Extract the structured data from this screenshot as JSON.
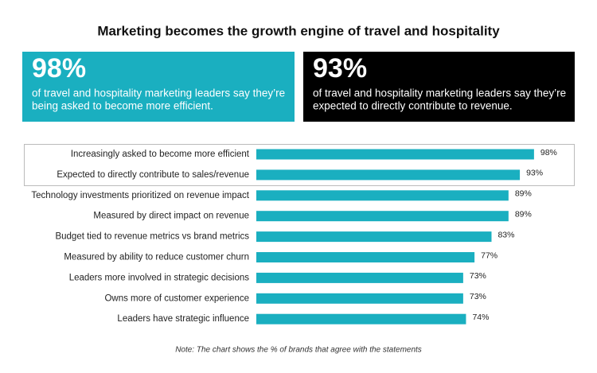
{
  "highlights": [
    {
      "stat": "98%",
      "lines": [
        "of travel and hospitality marketing leaders say they’re",
        "being asked to become more efficient."
      ]
    },
    {
      "stat": "93%",
      "lines": [
        "of travel and hospitality marketing leaders say they’re",
        "expected to directly contribute to revenue."
      ]
    }
  ],
  "chart_data": {
    "type": "bar",
    "orientation": "horizontal",
    "title": "Marketing becomes the growth engine of travel and hospitality",
    "categories": [
      "Increasingly asked to become more efficient",
      "Expected to directly contribute to sales/revenue",
      "Technology investments prioritized on revenue impact",
      "Measured by direct impact on revenue",
      "Budget tied to revenue metrics vs brand metrics",
      "Measured by ability to reduce customer churn",
      "Leaders more involved in strategic decisions",
      "Owns more of customer experience",
      "Leaders have strategic influence"
    ],
    "values": [
      98,
      93,
      89,
      89,
      83,
      77,
      73,
      73,
      74
    ],
    "value_labels": [
      "98%",
      "93%",
      "89%",
      "89%",
      "83%",
      "77%",
      "73%",
      "73%",
      "74%"
    ],
    "color": "#1aafc0",
    "note": "Note: The chart shows the % of brands that agree with the statements"
  }
}
